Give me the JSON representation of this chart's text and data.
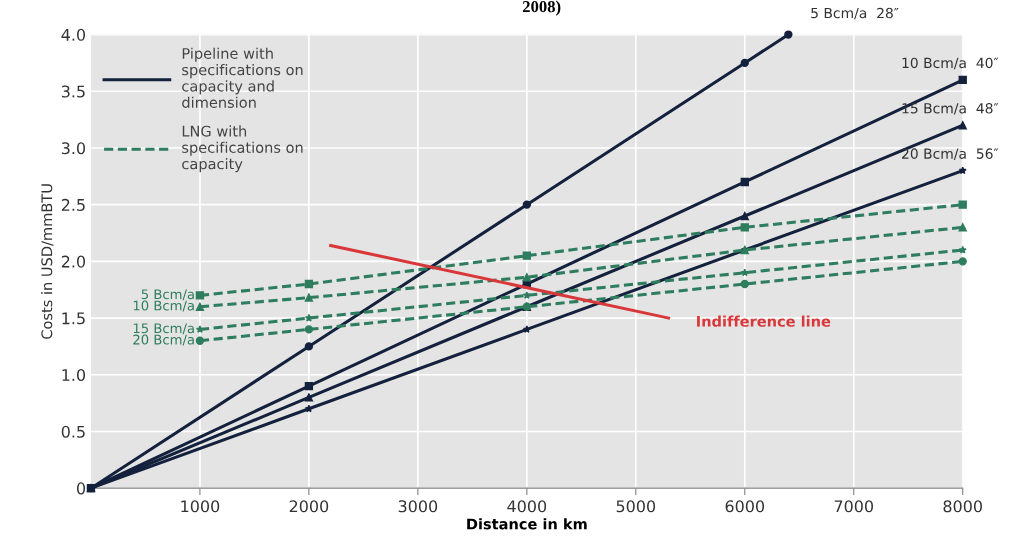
{
  "chart_data": {
    "type": "line",
    "title": "2008)",
    "xlabel": "Distance in km",
    "ylabel": "Costs in USD/mmBTU",
    "xlim": [
      0,
      8000
    ],
    "xticks": [
      1000,
      2000,
      3000,
      4000,
      5000,
      6000,
      7000,
      8000
    ],
    "ylim": [
      0,
      4
    ],
    "yticks": [
      0,
      0.5,
      {
        "value": 1,
        "label": "1.0"
      },
      1.5,
      {
        "value": 2,
        "label": "2.0"
      },
      2.5,
      {
        "value": 3,
        "label": "3.0"
      },
      3.5,
      {
        "value": 4,
        "label": "4.0"
      }
    ],
    "grid": true,
    "legend": "top left",
    "annotations": [
      "Pipeline with\nspecifications on\ncapacity and\ndimension",
      "LNG with\nspecifications on\ncapacity"
    ],
    "series": [
      {
        "name": "5 Bcm/a  28″",
        "color": "#14213d",
        "line_style": "solid",
        "marker": "circle",
        "x": [
          0,
          2000,
          4000,
          6000,
          6400
        ],
        "values": [
          0,
          1.25,
          2.5,
          3.75,
          4.0
        ]
      },
      {
        "name": "10 Bcm/a  40″",
        "color": "#14213d",
        "line_style": "solid",
        "marker": "square",
        "x": [
          0,
          2000,
          4000,
          6000,
          8000
        ],
        "values": [
          0,
          0.9,
          1.8,
          2.7,
          3.6
        ]
      },
      {
        "name": "15 Bcm/a  48″",
        "color": "#14213d",
        "line_style": "solid",
        "marker": "triangle",
        "x": [
          0,
          2000,
          4000,
          6000,
          8000
        ],
        "values": [
          0,
          0.8,
          1.6,
          2.4,
          3.2
        ]
      },
      {
        "name": "20 Bcm/a  56″",
        "color": "#14213d",
        "line_style": "solid",
        "marker": "star",
        "x": [
          0,
          2000,
          4000,
          6000,
          8000
        ],
        "values": [
          0,
          0.7,
          1.4,
          2.1,
          2.8
        ]
      },
      {
        "name": "5 Bcm/a",
        "color": "#2e7d5e",
        "line_style": "dashed",
        "marker": "square",
        "x": [
          1000,
          2000,
          4000,
          6000,
          8000
        ],
        "values": [
          1.7,
          1.8,
          2.05,
          2.3,
          2.5
        ]
      },
      {
        "name": "10 Bcm/a",
        "color": "#2e7d5e",
        "line_style": "dashed",
        "marker": "triangle",
        "x": [
          1000,
          2000,
          4000,
          6000,
          8000
        ],
        "values": [
          1.6,
          1.68,
          1.86,
          2.1,
          2.3
        ]
      },
      {
        "name": "15 Bcm/a",
        "color": "#2e7d5e",
        "line_style": "dashed",
        "marker": "star",
        "x": [
          1000,
          2000,
          4000,
          6000,
          8000
        ],
        "values": [
          1.4,
          1.5,
          1.7,
          1.9,
          2.1
        ]
      },
      {
        "name": "20 Bcm/a",
        "color": "#2e7d5e",
        "line_style": "dashed",
        "marker": "circle",
        "x": [
          1000,
          2000,
          4000,
          6000,
          8000
        ],
        "values": [
          1.3,
          1.4,
          1.6,
          1.8,
          2.0
        ]
      },
      {
        "name": "Indifference line",
        "color": "#d9383a",
        "line_style": "solid",
        "marker": "none",
        "x": [
          2200,
          5300
        ],
        "values": [
          2.14,
          1.5
        ]
      }
    ]
  }
}
